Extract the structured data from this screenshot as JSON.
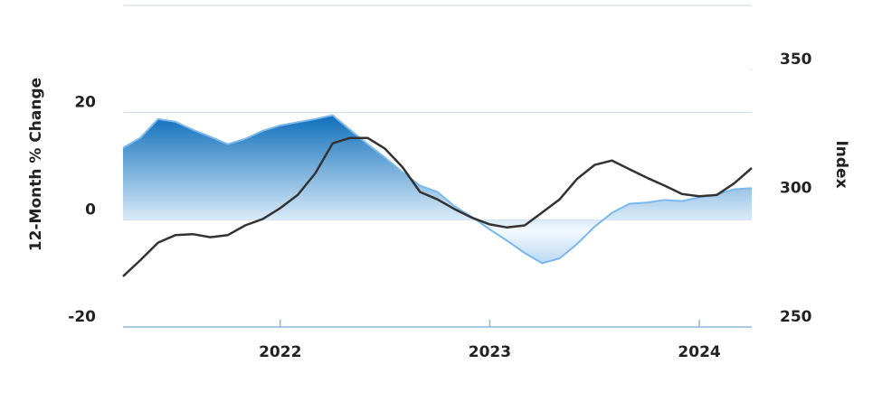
{
  "chart_data": {
    "type": "line",
    "y_label": "12-Month % Change",
    "y2_label": "Index",
    "x": [
      2021.25,
      2021.333,
      2021.417,
      2021.5,
      2021.583,
      2021.667,
      2021.75,
      2021.833,
      2021.917,
      2022.0,
      2022.083,
      2022.167,
      2022.25,
      2022.333,
      2022.417,
      2022.5,
      2022.583,
      2022.667,
      2022.75,
      2022.833,
      2022.917,
      2023.0,
      2023.083,
      2023.167,
      2023.25,
      2023.333,
      2023.417,
      2023.5,
      2023.583,
      2023.667,
      2023.75,
      2023.833,
      2023.917,
      2024.0,
      2024.083,
      2024.167,
      2024.25
    ],
    "xlim": [
      2021.25,
      2024.25
    ],
    "xticks": [
      2022,
      2023,
      2024
    ],
    "ylim": [
      -20,
      40
    ],
    "yticks": [
      -20,
      0,
      20
    ],
    "y2lim": [
      250,
      375
    ],
    "y2ticks": [
      250,
      300,
      350
    ],
    "grid": true,
    "series": [
      {
        "type": "area",
        "color": "#0b6dba",
        "values": [
          13.4,
          15.3,
          18.8,
          18.3,
          16.8,
          15.5,
          14.1,
          15.1,
          16.6,
          17.6,
          18.2,
          18.8,
          19.5,
          16.8,
          14.1,
          11.6,
          8.9,
          6.4,
          5.2,
          2.5,
          0.5,
          -1.8,
          -3.9,
          -6.2,
          -8.1,
          -7.2,
          -4.5,
          -1.3,
          1.3,
          3.0,
          3.2,
          3.7,
          3.5,
          4.2,
          4.7,
          5.7,
          5.9
        ]
      },
      {
        "type": "line",
        "color": "#333333",
        "axis": "y2",
        "values": [
          269.7,
          276.0,
          282.8,
          285.7,
          286.1,
          284.9,
          285.7,
          289.5,
          292.0,
          296.2,
          301.3,
          309.7,
          321.4,
          323.5,
          323.5,
          319.3,
          312.2,
          302.5,
          299.6,
          295.8,
          292.4,
          289.9,
          288.7,
          289.5,
          294.5,
          299.6,
          307.6,
          313.0,
          314.7,
          311.3,
          308.0,
          305.0,
          301.7,
          300.8,
          301.3,
          305.9,
          311.8
        ]
      }
    ]
  }
}
